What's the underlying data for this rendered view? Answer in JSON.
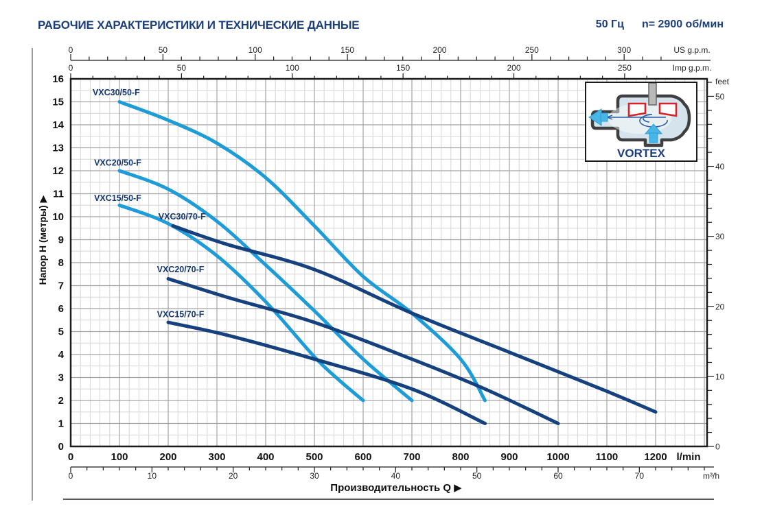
{
  "header": {
    "title": "РАБОЧИЕ ХАРАКТЕРИСТИКИ И ТЕХНИЧЕСКИЕ ДАННЫЕ",
    "frequency": "50 Гц",
    "speed": "n= 2900 об/мин"
  },
  "inset": {
    "label": "VORTEX"
  },
  "colors": {
    "header_blue": "#1b3e7c",
    "curve_light_blue": "#1e9cd8",
    "curve_dark_blue": "#16417f",
    "curve_label": "#15386f",
    "grid_minor": "#d6d6d6",
    "grid_major": "#a3a3a3",
    "axis_line": "#1a1a1a",
    "tick_text": "#222222",
    "impeller_red": "#d8232a",
    "arrow_blue": "#49b6e8"
  },
  "chart_data": {
    "type": "line",
    "title": "",
    "xlabel": "Производительность Q  ▶",
    "ylabel": "Напор H (метры)  ▶",
    "x_range_lmin": [
      0,
      1300
    ],
    "y_range_m": [
      0,
      16
    ],
    "grid": "on",
    "axes": {
      "us_gpm": {
        "unit": "US g.p.m.",
        "ticks": [
          0,
          50,
          100,
          150,
          200,
          250,
          300
        ],
        "minor_step": 10,
        "lmin_per_unit": 3.785
      },
      "imp_gpm": {
        "unit": "Imp g.p.m.",
        "ticks": [
          0,
          50,
          100,
          150,
          200,
          250
        ],
        "minor_step": 10,
        "lmin_per_unit": 4.546
      },
      "lmin": {
        "unit": "l/min",
        "ticks": [
          0,
          100,
          200,
          300,
          400,
          500,
          600,
          700,
          800,
          900,
          1000,
          1100,
          1200
        ],
        "minor_step": 20,
        "lmin_per_unit": 1
      },
      "m3h": {
        "unit": "m³/h",
        "ticks": [
          0,
          10,
          20,
          30,
          40,
          50,
          60,
          70
        ],
        "minor_step": 2,
        "lmin_per_unit": 16.6667
      },
      "head_m": {
        "ticks": [
          0,
          1,
          2,
          3,
          4,
          5,
          6,
          7,
          8,
          9,
          10,
          11,
          12,
          13,
          14,
          15,
          16
        ],
        "minor_step": 0.5
      },
      "feet": {
        "unit": "feet",
        "ticks": [
          0,
          10,
          20,
          30,
          40,
          50
        ],
        "minor_step": 2,
        "m_per_unit": 0.3048
      }
    },
    "series": [
      {
        "name": "VXC30/50-F",
        "color": "#1e9cd8",
        "label_pos_lmin_m": [
          45,
          15.4
        ],
        "points_lmin_m": [
          [
            100,
            15
          ],
          [
            200,
            14.2
          ],
          [
            300,
            13.2
          ],
          [
            400,
            11.7
          ],
          [
            500,
            9.6
          ],
          [
            600,
            7.4
          ],
          [
            700,
            5.8
          ],
          [
            800,
            3.8
          ],
          [
            850,
            2.0
          ]
        ]
      },
      {
        "name": "VXC20/50-F",
        "color": "#1e9cd8",
        "label_pos_lmin_m": [
          48,
          12.35
        ],
        "points_lmin_m": [
          [
            100,
            12
          ],
          [
            200,
            11.2
          ],
          [
            300,
            9.8
          ],
          [
            400,
            7.9
          ],
          [
            500,
            5.9
          ],
          [
            600,
            3.8
          ],
          [
            700,
            2.0
          ]
        ]
      },
      {
        "name": "VXC15/50-F",
        "color": "#1e9cd8",
        "label_pos_lmin_m": [
          48,
          10.8
        ],
        "points_lmin_m": [
          [
            100,
            10.5
          ],
          [
            200,
            9.7
          ],
          [
            300,
            8.3
          ],
          [
            400,
            6.3
          ],
          [
            500,
            3.9
          ],
          [
            550,
            2.9
          ],
          [
            600,
            2.0
          ]
        ]
      },
      {
        "name": "VXC30/70-F",
        "color": "#16417f",
        "label_pos_lmin_m": [
          180,
          10.0
        ],
        "points_lmin_m": [
          [
            210,
            9.6
          ],
          [
            320,
            8.8
          ],
          [
            500,
            7.7
          ],
          [
            700,
            5.8
          ],
          [
            900,
            4.1
          ],
          [
            1100,
            2.4
          ],
          [
            1200,
            1.5
          ]
        ]
      },
      {
        "name": "VXC20/70-F",
        "color": "#16417f",
        "label_pos_lmin_m": [
          177,
          7.7
        ],
        "points_lmin_m": [
          [
            200,
            7.3
          ],
          [
            320,
            6.5
          ],
          [
            500,
            5.4
          ],
          [
            700,
            3.8
          ],
          [
            850,
            2.5
          ],
          [
            1000,
            1.0
          ]
        ]
      },
      {
        "name": "VXC15/70-F",
        "color": "#16417f",
        "label_pos_lmin_m": [
          177,
          5.75
        ],
        "points_lmin_m": [
          [
            200,
            5.4
          ],
          [
            320,
            4.85
          ],
          [
            500,
            3.8
          ],
          [
            700,
            2.5
          ],
          [
            850,
            1.0
          ]
        ]
      }
    ]
  }
}
